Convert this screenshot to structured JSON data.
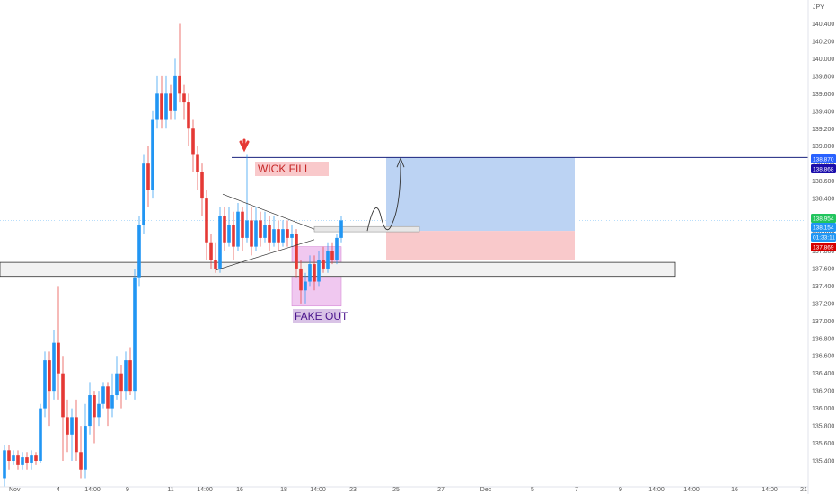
{
  "chart_data": {
    "type": "candlestick",
    "currency_label": "JPY",
    "y_ticks": [
      135.4,
      135.6,
      135.8,
      136.0,
      136.2,
      136.4,
      136.6,
      136.8,
      137.0,
      137.2,
      137.4,
      137.6,
      137.8,
      138.0,
      138.2,
      138.4,
      138.6,
      138.8,
      139.0,
      139.2,
      139.4,
      139.6,
      139.8,
      140.0,
      140.2,
      140.4
    ],
    "y_tick_labels": [
      "135.400",
      "135.600",
      "135.800",
      "136.000",
      "136.200",
      "136.400",
      "136.600",
      "136.800",
      "137.000",
      "137.200",
      "137.400",
      "137.600",
      "137.800",
      "138.000",
      "138.200",
      "138.400",
      "138.600",
      "138.800",
      "139.000",
      "139.200",
      "139.400",
      "139.600",
      "139.800",
      "140.000",
      "140.200",
      "140.400"
    ],
    "x_tick_labels": [
      "Nov",
      "4",
      "14:00",
      "9",
      "11",
      "14:00",
      "16",
      "18",
      "14:00",
      "23",
      "25",
      "27",
      "Dec",
      "5",
      "7",
      "9",
      "14:00",
      "14:00",
      "16",
      "14:00",
      "21"
    ],
    "price_badges": [
      {
        "label": "138.870",
        "color": "#2962ff"
      },
      {
        "label": "138.868",
        "color": "#1a0dab"
      },
      {
        "label": "138.154",
        "color": "#2196f3"
      },
      {
        "label": "01:33:11",
        "color": "#2196f3"
      },
      {
        "label": "137.869",
        "color": "#d50000"
      }
    ],
    "current_price_badge": {
      "label": "138.954",
      "color": "#22c55e"
    },
    "annotations": {
      "wick_fill": "WICK FILL",
      "fake_out": "FAKE OUT"
    },
    "levels": {
      "target": 138.87,
      "entry": 138.03,
      "stop": 137.7,
      "support_top": 137.67,
      "support_bottom": 137.51
    },
    "colors": {
      "up": "#2196f3",
      "down": "#e53935",
      "profit_zone": "#bcd3f3",
      "loss_zone": "#f9c9cb",
      "fakeout_zone": "#f0c8f0",
      "target_line": "#1a237e",
      "wick_fill_bg": "#f9c9cb",
      "fake_out_bg": "#d9c3e6"
    },
    "candles": [
      [
        135.2,
        135.52,
        135.1,
        135.58
      ],
      [
        135.52,
        135.4,
        135.3,
        135.58
      ],
      [
        135.4,
        135.46,
        135.35,
        135.52
      ],
      [
        135.46,
        135.35,
        135.3,
        135.52
      ],
      [
        135.35,
        135.44,
        135.3,
        135.5
      ],
      [
        135.44,
        135.38,
        135.3,
        135.5
      ],
      [
        135.38,
        135.46,
        135.3,
        135.52
      ],
      [
        135.46,
        135.4,
        135.35,
        135.5
      ],
      [
        135.4,
        136.0,
        135.38,
        136.05
      ],
      [
        136.0,
        136.55,
        135.9,
        136.65
      ],
      [
        136.55,
        136.2,
        135.8,
        136.65
      ],
      [
        136.2,
        136.75,
        136.1,
        136.9
      ],
      [
        136.75,
        136.4,
        136.1,
        137.4
      ],
      [
        136.4,
        135.9,
        135.4,
        136.6
      ],
      [
        135.9,
        135.7,
        135.5,
        136.1
      ],
      [
        135.7,
        135.9,
        135.4,
        136.0
      ],
      [
        135.9,
        135.5,
        135.4,
        136.1
      ],
      [
        135.5,
        135.3,
        135.2,
        135.8
      ],
      [
        135.3,
        135.8,
        135.2,
        136.05
      ],
      [
        135.8,
        136.15,
        135.7,
        136.3
      ],
      [
        136.15,
        135.9,
        135.6,
        136.2
      ],
      [
        135.9,
        136.05,
        135.8,
        136.2
      ],
      [
        136.05,
        136.25,
        136.0,
        136.3
      ],
      [
        136.25,
        136.0,
        135.8,
        136.3
      ],
      [
        136.0,
        136.15,
        135.9,
        136.4
      ],
      [
        136.15,
        136.4,
        136.1,
        136.6
      ],
      [
        136.4,
        136.2,
        136.0,
        136.5
      ],
      [
        136.2,
        136.55,
        136.1,
        136.65
      ],
      [
        136.55,
        136.2,
        136.15,
        136.7
      ],
      [
        136.2,
        137.5,
        136.1,
        137.6
      ],
      [
        137.5,
        138.1,
        137.4,
        138.2
      ],
      [
        138.1,
        138.8,
        138.0,
        138.9
      ],
      [
        138.8,
        138.5,
        138.3,
        139.0
      ],
      [
        138.5,
        139.3,
        138.4,
        139.4
      ],
      [
        139.3,
        139.6,
        139.2,
        139.8
      ],
      [
        139.6,
        139.3,
        139.2,
        139.8
      ],
      [
        139.3,
        139.6,
        139.2,
        139.8
      ],
      [
        139.6,
        139.4,
        139.3,
        139.7
      ],
      [
        139.4,
        139.8,
        139.3,
        140.0
      ],
      [
        139.8,
        139.6,
        139.5,
        140.4
      ],
      [
        139.6,
        139.5,
        139.3,
        139.7
      ],
      [
        139.5,
        139.2,
        139.0,
        139.6
      ],
      [
        139.2,
        138.9,
        138.7,
        139.3
      ],
      [
        138.9,
        138.7,
        138.5,
        139.0
      ],
      [
        138.7,
        138.4,
        138.2,
        138.8
      ],
      [
        138.4,
        137.9,
        137.7,
        138.5
      ],
      [
        137.9,
        137.7,
        137.6,
        138.0
      ],
      [
        137.7,
        137.6,
        137.55,
        137.9
      ],
      [
        137.6,
        138.2,
        137.55,
        138.3
      ],
      [
        138.2,
        137.9,
        137.8,
        138.3
      ],
      [
        137.9,
        138.1,
        137.85,
        138.3
      ],
      [
        138.1,
        137.85,
        137.7,
        138.25
      ],
      [
        137.85,
        138.25,
        137.8,
        138.35
      ],
      [
        138.25,
        137.95,
        137.8,
        138.3
      ],
      [
        137.95,
        138.15,
        137.9,
        138.9
      ],
      [
        138.15,
        137.85,
        137.75,
        138.3
      ],
      [
        137.85,
        138.15,
        137.8,
        138.3
      ],
      [
        138.15,
        137.95,
        137.85,
        138.25
      ],
      [
        137.95,
        138.1,
        137.9,
        138.25
      ],
      [
        138.1,
        137.9,
        137.8,
        138.2
      ],
      [
        137.9,
        138.05,
        137.85,
        138.2
      ],
      [
        138.05,
        137.9,
        137.8,
        138.15
      ],
      [
        137.9,
        138.05,
        137.85,
        138.15
      ],
      [
        138.05,
        137.95,
        137.85,
        138.15
      ],
      [
        137.95,
        138.0,
        137.85,
        138.1
      ],
      [
        138.0,
        137.6,
        137.5,
        138.05
      ],
      [
        137.6,
        137.35,
        137.2,
        137.7
      ],
      [
        137.35,
        137.45,
        137.2,
        137.55
      ],
      [
        137.45,
        137.65,
        137.4,
        137.75
      ],
      [
        137.65,
        137.45,
        137.35,
        137.75
      ],
      [
        137.45,
        137.7,
        137.4,
        137.8
      ],
      [
        137.7,
        137.6,
        137.55,
        137.85
      ],
      [
        137.6,
        137.8,
        137.55,
        137.9
      ],
      [
        137.8,
        137.7,
        137.65,
        137.9
      ],
      [
        137.7,
        137.95,
        137.65,
        138.0
      ],
      [
        137.95,
        138.15,
        137.9,
        138.2
      ]
    ]
  }
}
